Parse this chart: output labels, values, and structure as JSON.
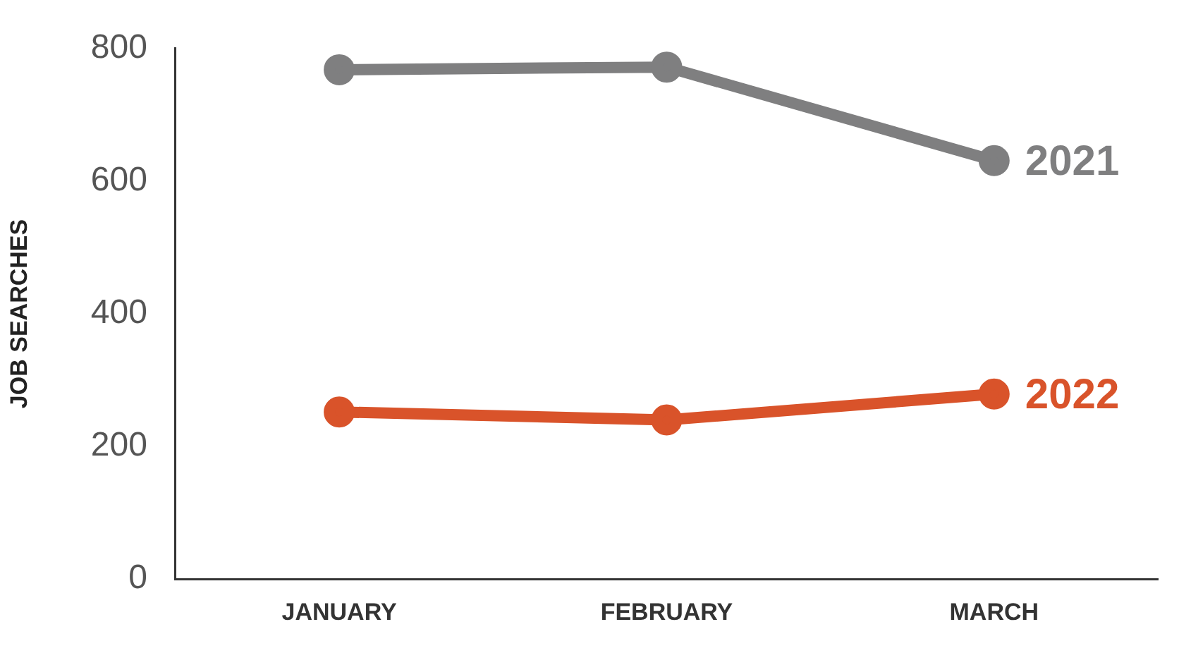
{
  "chart_data": {
    "type": "line",
    "ylabel": "JOB SEARCHES",
    "categories": [
      "JANUARY",
      "FEBRUARY",
      "MARCH"
    ],
    "series": [
      {
        "name": "2021",
        "color": "#7f7f80",
        "values": [
          768,
          772,
          631
        ]
      },
      {
        "name": "2022",
        "color": "#d9532a",
        "values": [
          252,
          240,
          279
        ]
      }
    ],
    "ylim": [
      0,
      800
    ],
    "yticks": [
      0,
      200,
      400,
      600,
      800
    ],
    "grid": false,
    "marker": "circle",
    "line_style": "solid"
  }
}
